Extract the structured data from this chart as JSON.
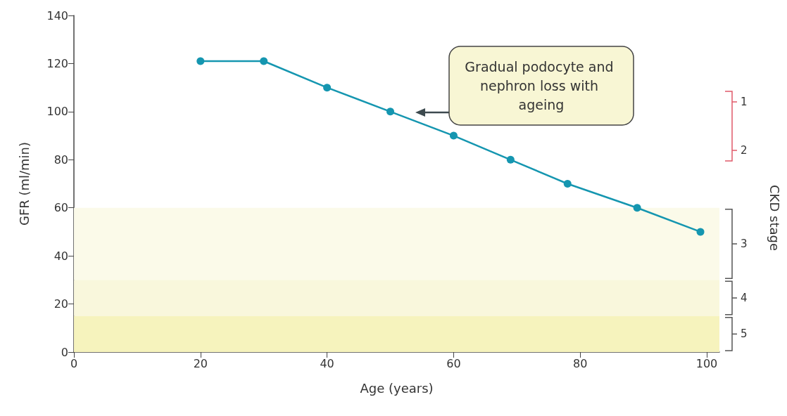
{
  "chart_data": {
    "type": "line",
    "xlabel": "Age (years)",
    "ylabel": "GFR (ml/min)",
    "y2label": "CKD stage",
    "x": [
      20,
      30,
      40,
      50,
      60,
      69,
      78,
      89,
      99
    ],
    "series": [
      {
        "color": "#1596b0",
        "values": [
          121,
          121,
          110,
          100,
          90,
          80,
          70,
          60,
          50
        ]
      }
    ],
    "xlim": [
      0,
      102
    ],
    "xticks": [
      0,
      20,
      40,
      60,
      80,
      100
    ],
    "ylim": [
      0,
      140
    ],
    "yticks": [
      0,
      20,
      40,
      60,
      80,
      100,
      120,
      140
    ],
    "bands": [
      {
        "axis": "y",
        "from": 30,
        "to": 60,
        "label": "3",
        "color": "#fbfae9"
      },
      {
        "axis": "y",
        "from": 15,
        "to": 30,
        "label": "4",
        "color": "#f9f7dc"
      },
      {
        "axis": "y",
        "from": 0,
        "to": 15,
        "label": "5",
        "color": "#f6f3bd"
      }
    ],
    "annotations": [
      "Gradual podocyte and nephron loss with ageing",
      "1",
      "2"
    ],
    "grid": false,
    "marker": "circle",
    "line_style": "solid"
  }
}
